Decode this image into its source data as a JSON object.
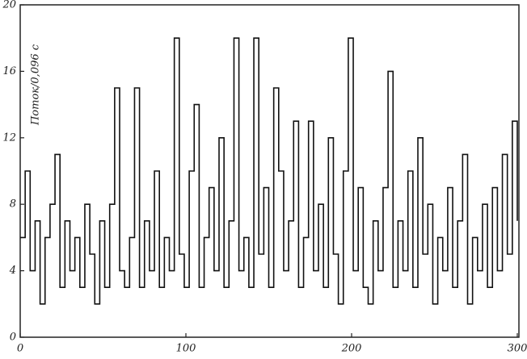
{
  "chart_data": {
    "type": "line",
    "ylabel": "Поток/0,096 с",
    "x": [
      0,
      3,
      6,
      9,
      12,
      15,
      18,
      21,
      24,
      27,
      30,
      33,
      36,
      39,
      42,
      45,
      48,
      51,
      54,
      57,
      60,
      63,
      66,
      69,
      72,
      75,
      78,
      81,
      84,
      87,
      90,
      93,
      96,
      99,
      102,
      105,
      108,
      111,
      114,
      117,
      120,
      123,
      126,
      129,
      132,
      135,
      138,
      141,
      144,
      147,
      150,
      153,
      156,
      159,
      162,
      165,
      168,
      171,
      174,
      177,
      180,
      183,
      186,
      189,
      192,
      195,
      198,
      201,
      204,
      207,
      210,
      213,
      216,
      219,
      222,
      225,
      228,
      231,
      234,
      237,
      240,
      243,
      246,
      249,
      252,
      255,
      258,
      261,
      264,
      267,
      270,
      273,
      276,
      279,
      282,
      285,
      288,
      291,
      294,
      297,
      300
    ],
    "series": [
      {
        "color": "#111111",
        "values": [
          6,
          10,
          4,
          7,
          2,
          6,
          8,
          11,
          3,
          7,
          4,
          6,
          3,
          8,
          5,
          2,
          7,
          3,
          8,
          15,
          4,
          3,
          6,
          15,
          3,
          7,
          4,
          10,
          3,
          6,
          4,
          18,
          5,
          3,
          10,
          14,
          3,
          6,
          9,
          4,
          12,
          3,
          7,
          18,
          4,
          6,
          3,
          18,
          5,
          9,
          3,
          15,
          10,
          4,
          7,
          13,
          3,
          6,
          13,
          4,
          8,
          3,
          12,
          5,
          2,
          10,
          18,
          4,
          9,
          3,
          2,
          7,
          4,
          9,
          16,
          3,
          7,
          4,
          10,
          3,
          12,
          5,
          8,
          2,
          6,
          4,
          9,
          3,
          7,
          11,
          2,
          6,
          4,
          8,
          3,
          9,
          4,
          11,
          5,
          13,
          7
        ]
      }
    ],
    "xlim": [
      0,
      300
    ],
    "ylim": [
      0,
      20
    ],
    "xticks": [
      0,
      100,
      200,
      300
    ],
    "yticks": [
      0,
      4,
      8,
      12,
      16,
      20
    ]
  }
}
